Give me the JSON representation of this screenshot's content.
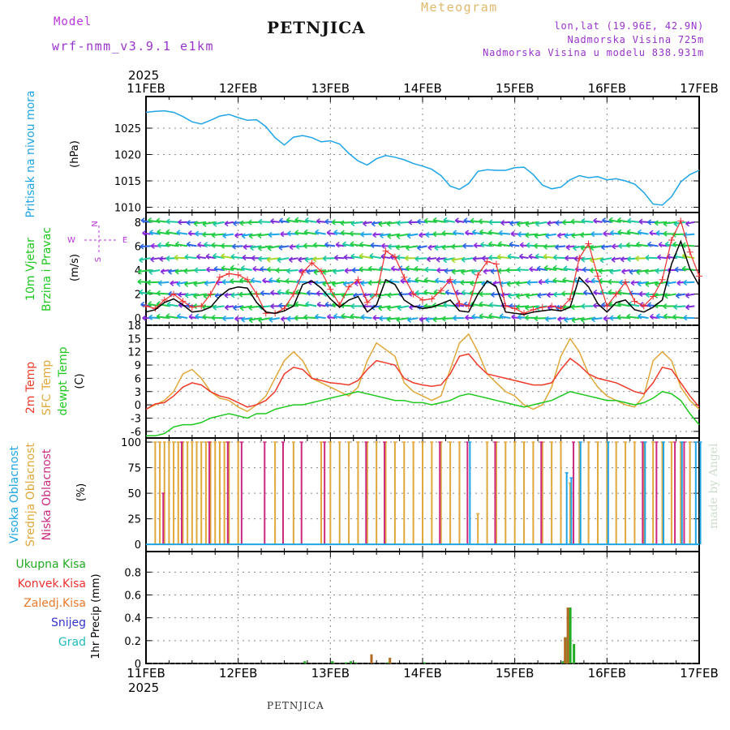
{
  "header": {
    "model_label": "Model",
    "model_name": "wrf-nmm_v3.9.1 e1km",
    "title": "PETNJICA",
    "subtitle": "Meteogram",
    "coords": "lon,lat (19.96E, 42.9N)",
    "elevation": "Nadmorska Visina 725m",
    "model_elevation": "Nadmorska Visina u modelu 838.931m",
    "footer_title": "PETNJICA",
    "watermark": "made by Angel"
  },
  "time_axis": {
    "year": "2025",
    "ticks": [
      "11FEB",
      "12FEB",
      "13FEB",
      "14FEB",
      "15FEB",
      "16FEB",
      "17FEB"
    ]
  },
  "colors": {
    "pressure": "#1fa5e6",
    "wind_speed": "#000000",
    "wind_gust": "#ee3030",
    "temp_2m": "#ee3a2a",
    "temp_sfc": "#e0a83a",
    "dewpoint": "#1ec81e",
    "cloud_high": "#1fa5e6",
    "cloud_mid": "#e0a83a",
    "cloud_low": "#cc2a80",
    "precip_total": "#22aa22",
    "precip_conv": "#ee3030",
    "precip_frozen": "#e87a2a",
    "snow": "#3333cc",
    "hail": "#22bbbb",
    "wind_legend": "#bb33dd"
  },
  "chart_data": [
    {
      "type": "line",
      "panel": "pressure",
      "ylabel_lines": [
        "Pritisak na nivou mora"
      ],
      "unit": "(hPa)",
      "ylim": [
        1009,
        1031
      ],
      "yticks": [
        1010,
        1015,
        1020,
        1025
      ],
      "series": [
        {
          "x": [
            0,
            0.1,
            0.2,
            0.3,
            0.4,
            0.5,
            0.6,
            0.7,
            0.8,
            0.9,
            1.0,
            1.1,
            1.2,
            1.3,
            1.4,
            1.5,
            1.6,
            1.7,
            1.8,
            1.9,
            2.0,
            2.1,
            2.2,
            2.3,
            2.4,
            2.5,
            2.6,
            2.7,
            2.8,
            2.9,
            3.0,
            3.1,
            3.2,
            3.3,
            3.4,
            3.5,
            3.6,
            3.7,
            3.8,
            3.9,
            4.0,
            4.1,
            4.2,
            4.3,
            4.4,
            4.5,
            4.6,
            4.7,
            4.8,
            4.9,
            5.0,
            5.1,
            5.2,
            5.3,
            5.4,
            5.5,
            5.6,
            5.7,
            5.8,
            5.9,
            6.0
          ],
          "y": [
            1028,
            1028.2,
            1028.3,
            1028,
            1027.2,
            1026.2,
            1025.8,
            1026.5,
            1027.3,
            1027.6,
            1027,
            1026.5,
            1026.6,
            1025.3,
            1023.2,
            1021.8,
            1023.3,
            1023.6,
            1023.2,
            1022.4,
            1022.6,
            1022,
            1020.2,
            1018.8,
            1018,
            1019.2,
            1019.8,
            1019.5,
            1019,
            1018.3,
            1017.8,
            1017.2,
            1016,
            1014,
            1013.4,
            1014.5,
            1016.8,
            1017.1,
            1017,
            1017,
            1017.5,
            1017.6,
            1016.2,
            1014.2,
            1013.5,
            1013.8,
            1015.2,
            1016,
            1015.6,
            1015.8,
            1015.2,
            1015.4,
            1015,
            1014.4,
            1012.8,
            1010.6,
            1010.4,
            1012,
            1014.8,
            1016.2,
            1017
          ]
        }
      ]
    },
    {
      "type": "line",
      "panel": "wind",
      "ylabel_lines": [
        "10m Vjetar",
        "Brzina i Pravac"
      ],
      "unit": "(m/s)",
      "ylim": [
        -0.6,
        8.8
      ],
      "yticks": [
        0,
        2,
        4,
        6,
        8
      ],
      "wind_legend": {
        "n": "N",
        "s": "S",
        "w": "W",
        "e": "E"
      },
      "series": [
        {
          "x": [
            0,
            0.1,
            0.2,
            0.3,
            0.4,
            0.5,
            0.6,
            0.7,
            0.8,
            0.9,
            1.0,
            1.1,
            1.2,
            1.3,
            1.4,
            1.5,
            1.6,
            1.7,
            1.8,
            1.9,
            2.0,
            2.1,
            2.2,
            2.3,
            2.4,
            2.5,
            2.6,
            2.7,
            2.8,
            2.9,
            3.0,
            3.1,
            3.2,
            3.3,
            3.4,
            3.5,
            3.6,
            3.7,
            3.8,
            3.9,
            4.0,
            4.1,
            4.2,
            4.3,
            4.4,
            4.5,
            4.6,
            4.7,
            4.8,
            4.9,
            5.0,
            5.1,
            5.2,
            5.3,
            5.4,
            5.5,
            5.6,
            5.7,
            5.8,
            5.9,
            6.0
          ],
          "y": [
            0.5,
            0.7,
            1.3,
            1.6,
            1.1,
            0.5,
            0.6,
            0.9,
            1.8,
            2.4,
            2.6,
            2.5,
            1.3,
            0.5,
            0.4,
            0.6,
            1,
            2.8,
            3.1,
            2.5,
            1.6,
            0.9,
            1.5,
            1.8,
            0.5,
            1.1,
            3.2,
            2.8,
            1.5,
            1,
            0.8,
            0.9,
            1.2,
            1.5,
            0.6,
            0.5,
            2,
            3.1,
            2.6,
            0.5,
            0.4,
            0.3,
            0.5,
            0.6,
            0.7,
            0.6,
            0.9,
            3.4,
            2.6,
            1.2,
            0.5,
            1.3,
            1.5,
            0.7,
            0.5,
            0.9,
            1.5,
            4.5,
            6.4,
            4.1,
            2.7
          ]
        },
        {
          "x": [
            0,
            0.1,
            0.2,
            0.3,
            0.4,
            0.5,
            0.6,
            0.7,
            0.8,
            0.9,
            1.0,
            1.1,
            1.2,
            1.3,
            1.4,
            1.5,
            1.6,
            1.7,
            1.8,
            1.9,
            2.0,
            2.1,
            2.2,
            2.3,
            2.4,
            2.5,
            2.6,
            2.7,
            2.8,
            2.9,
            3.0,
            3.1,
            3.2,
            3.3,
            3.4,
            3.5,
            3.6,
            3.7,
            3.8,
            3.9,
            4.0,
            4.1,
            4.2,
            4.3,
            4.4,
            4.5,
            4.6,
            4.7,
            4.8,
            4.9,
            5.0,
            5.1,
            5.2,
            5.3,
            5.4,
            5.5,
            5.6,
            5.7,
            5.8,
            5.9,
            6.0
          ],
          "y": [
            1,
            0.8,
            1.5,
            2,
            1.4,
            0.9,
            1,
            2,
            3.4,
            3.7,
            3.6,
            3.2,
            2,
            0.4,
            0.4,
            0.8,
            2,
            3.8,
            4.6,
            3.9,
            2.4,
            1.1,
            2.6,
            3.2,
            1.3,
            2,
            5.6,
            5.1,
            3.4,
            2,
            1.5,
            1.6,
            2.3,
            3.2,
            1.2,
            1,
            3.6,
            4.7,
            4.5,
            1,
            0.8,
            0.4,
            0.7,
            0.9,
            1,
            0.8,
            1.6,
            5,
            6.2,
            3.5,
            1,
            2,
            3,
            1.4,
            1,
            1.8,
            3.2,
            6.5,
            8.1,
            5.5,
            3.5
          ]
        }
      ]
    },
    {
      "type": "line",
      "panel": "temperature",
      "ylabel_lines": [
        "2m Temp",
        "SFC Temp",
        "dewpt Temp"
      ],
      "unit": "(C)",
      "ylim": [
        -7.5,
        18
      ],
      "yticks": [
        -6,
        -3,
        0,
        3,
        6,
        9,
        12,
        15,
        18
      ],
      "series": [
        {
          "name": "2m Temp",
          "x": [
            0,
            0.1,
            0.2,
            0.3,
            0.4,
            0.5,
            0.6,
            0.7,
            0.8,
            0.9,
            1.0,
            1.1,
            1.2,
            1.3,
            1.4,
            1.5,
            1.6,
            1.7,
            1.8,
            1.9,
            2.0,
            2.1,
            2.2,
            2.3,
            2.4,
            2.5,
            2.6,
            2.7,
            2.8,
            2.9,
            3.0,
            3.1,
            3.2,
            3.3,
            3.4,
            3.5,
            3.6,
            3.7,
            3.8,
            3.9,
            4.0,
            4.1,
            4.2,
            4.3,
            4.4,
            4.5,
            4.6,
            4.7,
            4.8,
            4.9,
            5.0,
            5.1,
            5.2,
            5.3,
            5.4,
            5.5,
            5.6,
            5.7,
            5.8,
            5.9,
            6.0
          ],
          "y": [
            -1,
            0.2,
            0.5,
            2,
            4,
            5,
            4.5,
            3,
            2,
            1.5,
            0.5,
            -0.5,
            0,
            1,
            3,
            7,
            8.5,
            8,
            6,
            5.5,
            5,
            4.8,
            4.5,
            5.5,
            8,
            10,
            9.5,
            9,
            6,
            5,
            4.5,
            4.2,
            4.5,
            7,
            11,
            11.5,
            9,
            7,
            6.5,
            6,
            5.5,
            5,
            4.5,
            4.5,
            5,
            8,
            10.5,
            9,
            7,
            6,
            5.5,
            5,
            4,
            3,
            2.5,
            5,
            8.5,
            8,
            5,
            2,
            -0.5
          ]
        },
        {
          "name": "SFC Temp",
          "x": [
            0,
            0.1,
            0.2,
            0.3,
            0.4,
            0.5,
            0.6,
            0.7,
            0.8,
            0.9,
            1.0,
            1.1,
            1.2,
            1.3,
            1.4,
            1.5,
            1.6,
            1.7,
            1.8,
            1.9,
            2.0,
            2.1,
            2.2,
            2.3,
            2.4,
            2.5,
            2.6,
            2.7,
            2.8,
            2.9,
            3.0,
            3.1,
            3.2,
            3.3,
            3.4,
            3.5,
            3.6,
            3.7,
            3.8,
            3.9,
            4.0,
            4.1,
            4.2,
            4.3,
            4.4,
            4.5,
            4.6,
            4.7,
            4.8,
            4.9,
            5.0,
            5.1,
            5.2,
            5.3,
            5.4,
            5.5,
            5.6,
            5.7,
            5.8,
            5.9,
            6.0
          ],
          "y": [
            -1,
            0,
            1,
            3,
            7,
            8,
            6,
            3,
            1.5,
            1,
            -0.5,
            -1.5,
            0,
            2,
            6,
            10,
            12,
            10,
            6,
            5,
            4,
            3,
            2,
            4,
            10,
            14,
            12.5,
            11,
            5,
            3,
            2,
            1,
            2,
            8,
            14,
            16,
            12,
            7,
            5,
            3,
            2,
            0,
            -1,
            0,
            4,
            11,
            15,
            12,
            7,
            4,
            2,
            1,
            0,
            -0.5,
            2,
            10,
            12,
            10,
            4,
            1,
            -1
          ]
        },
        {
          "name": "dewpt Temp",
          "x": [
            0,
            0.1,
            0.2,
            0.3,
            0.4,
            0.5,
            0.6,
            0.7,
            0.8,
            0.9,
            1.0,
            1.1,
            1.2,
            1.3,
            1.4,
            1.5,
            1.6,
            1.7,
            1.8,
            1.9,
            2.0,
            2.1,
            2.2,
            2.3,
            2.4,
            2.5,
            2.6,
            2.7,
            2.8,
            2.9,
            3.0,
            3.1,
            3.2,
            3.3,
            3.4,
            3.5,
            3.6,
            3.7,
            3.8,
            3.9,
            4.0,
            4.1,
            4.2,
            4.3,
            4.4,
            4.5,
            4.6,
            4.7,
            4.8,
            4.9,
            5.0,
            5.1,
            5.2,
            5.3,
            5.4,
            5.5,
            5.6,
            5.7,
            5.8,
            5.9,
            6.0
          ],
          "y": [
            -7,
            -7,
            -6.5,
            -5,
            -4.5,
            -4.5,
            -4,
            -3,
            -2.5,
            -2,
            -2.5,
            -3,
            -2,
            -2,
            -1,
            -0.5,
            0,
            0,
            0.5,
            1,
            1.5,
            2,
            2.5,
            3,
            2.5,
            2,
            1.5,
            1,
            1,
            0.5,
            0.5,
            0,
            0.5,
            1,
            2,
            2.5,
            2,
            1.5,
            1,
            0.5,
            0,
            -0.5,
            0,
            0.5,
            1,
            2,
            3,
            2.5,
            2,
            1.5,
            1,
            1,
            0.5,
            0,
            0.5,
            1.5,
            3,
            2.5,
            1,
            -2,
            -4.5
          ]
        }
      ]
    },
    {
      "type": "bar",
      "panel": "clouds",
      "ylabel_lines": [
        "Visoka Oblacnost",
        "Srednja Oblacnost",
        "Niska Oblacnost"
      ],
      "unit": "(%)",
      "ylim": [
        -7,
        104
      ],
      "yticks": [
        0,
        25,
        50,
        75,
        100
      ],
      "series": [
        {
          "name": "Visoka Oblacnost",
          "x": [
            3.5,
            4.55,
            4.6,
            4.7,
            5.0,
            5.4,
            5.6,
            5.8,
            5.95,
            6.0
          ],
          "values": [
            100,
            70,
            65,
            100,
            100,
            100,
            100,
            100,
            100,
            100
          ]
        },
        {
          "name": "Srednja Oblacnost",
          "x": [
            0.1,
            0.15,
            0.2,
            0.25,
            0.3,
            0.35,
            0.4,
            0.45,
            0.5,
            0.55,
            0.6,
            0.65,
            0.7,
            0.75,
            0.8,
            0.85,
            0.9,
            1.0,
            1.4,
            1.6,
            1.9,
            2.0,
            2.1,
            2.2,
            2.3,
            2.4,
            2.5,
            2.6,
            2.7,
            2.8,
            2.9,
            3.0,
            3.1,
            3.2,
            3.3,
            3.4,
            3.6,
            3.7,
            3.8,
            3.9,
            4.0,
            4.1,
            4.2,
            4.3,
            4.4,
            4.5,
            4.6,
            4.7,
            4.8,
            4.9,
            5.0,
            5.1,
            5.2,
            5.3,
            5.4,
            5.5,
            5.6,
            5.7,
            5.8,
            5.9
          ],
          "values": [
            100,
            100,
            100,
            100,
            100,
            100,
            100,
            100,
            100,
            100,
            100,
            100,
            100,
            100,
            100,
            100,
            100,
            100,
            100,
            100,
            100,
            100,
            100,
            100,
            100,
            100,
            100,
            100,
            100,
            100,
            100,
            100,
            100,
            100,
            100,
            100,
            30,
            100,
            100,
            100,
            100,
            100,
            100,
            100,
            100,
            100,
            60,
            100,
            100,
            100,
            100,
            100,
            100,
            100,
            100,
            100,
            100,
            100,
            100,
            100
          ]
        },
        {
          "name": "Niska Oblacnost",
          "x": [
            0.2,
            0.4,
            0.7,
            0.9,
            1.05,
            1.3,
            1.5,
            1.7,
            1.95,
            2.4,
            2.6,
            3.2,
            3.5,
            3.8,
            4.3,
            4.65,
            5.4,
            5.55,
            5.75,
            5.85
          ],
          "values": [
            50,
            100,
            100,
            100,
            100,
            100,
            100,
            100,
            100,
            100,
            100,
            100,
            100,
            100,
            100,
            100,
            100,
            100,
            100,
            100
          ]
        }
      ]
    },
    {
      "type": "bar",
      "panel": "precip",
      "ylabel_lines": [
        "1hr Precip"
      ],
      "unit": "(mm)",
      "legend": [
        "Ukupna Kisa",
        "Konvek.Kisa",
        "Zaledj.Kisa",
        "Snijeg",
        "Grad"
      ],
      "ylim": [
        0,
        0.98
      ],
      "yticks": [
        0,
        0.2,
        0.4,
        0.6,
        0.8
      ],
      "series": [
        {
          "name": "Ukupna Kisa",
          "x": [
            1.7,
            2.0,
            2.15,
            2.2,
            2.25,
            2.6,
            3.0,
            4.5,
            4.55,
            4.58,
            4.62
          ],
          "values": [
            0.02,
            0.02,
            0.01,
            0.02,
            0.01,
            0.01,
            0.01,
            0.02,
            0.23,
            0.49,
            0.17
          ]
        },
        {
          "name": "Konvek.Kisa",
          "x": [
            2.45,
            2.65,
            4.55,
            4.58
          ],
          "values": [
            0.08,
            0.05,
            0.23,
            0.49
          ]
        }
      ]
    }
  ]
}
